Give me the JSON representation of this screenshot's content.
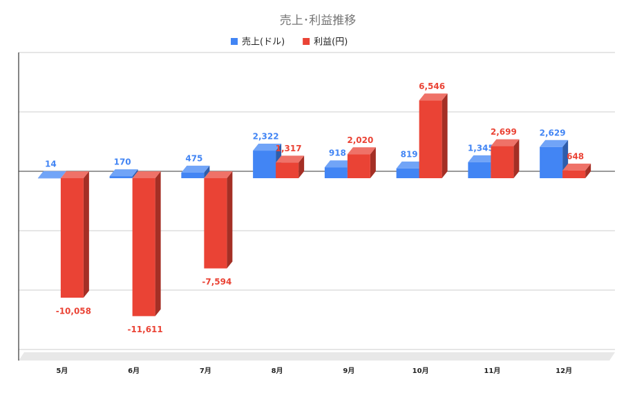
{
  "chart_data": {
    "type": "bar3d",
    "title": "売上･利益推移",
    "categories": [
      "5月",
      "6月",
      "7月",
      "8月",
      "9月",
      "10月",
      "11月",
      "12月"
    ],
    "series": [
      {
        "name": "売上(ドル)",
        "color": "#4285f4",
        "values": [
          14,
          170,
          475,
          2322,
          918,
          819,
          1345,
          2629
        ],
        "value_labels": [
          "14",
          "170",
          "475",
          "2,322",
          "918",
          "819",
          "1,345",
          "2,629"
        ]
      },
      {
        "name": "利益(円)",
        "color": "#ea4335",
        "values": [
          -10058,
          -11611,
          -7594,
          1317,
          2020,
          6546,
          2699,
          648
        ],
        "value_labels": [
          "-10,058",
          "-11,611",
          "-7,594",
          "1,317",
          "2,020",
          "6,546",
          "2,699",
          "648"
        ]
      }
    ],
    "ylim": [
      -15000,
      10000
    ],
    "yticks": [
      -15000,
      -10000,
      -5000,
      0,
      5000,
      10000
    ],
    "grid": true,
    "legend": "top"
  }
}
